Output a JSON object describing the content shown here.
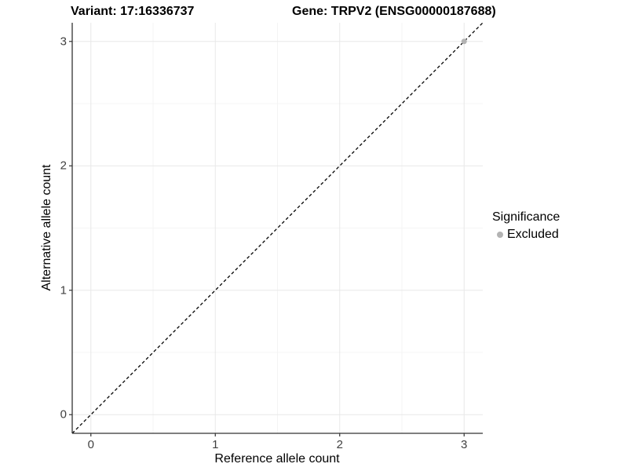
{
  "header": {
    "variant_title": "Variant: 17:16336737",
    "gene_title": "Gene: TRPV2 (ENSG00000187688)"
  },
  "chart_data": {
    "type": "scatter",
    "xlabel": "Reference allele count",
    "ylabel": "Alternative allele count",
    "xlim": [
      -0.15,
      3.15
    ],
    "ylim": [
      -0.15,
      3.15
    ],
    "x_ticks": [
      0,
      1,
      2,
      3
    ],
    "y_ticks": [
      0,
      1,
      2,
      3
    ],
    "x_minor_ticks": [
      0.5,
      1.5,
      2.5
    ],
    "y_minor_ticks": [
      0.5,
      1.5,
      2.5
    ],
    "grid": true,
    "identity_line": {
      "style": "dashed",
      "slope": 1,
      "intercept": 0,
      "color": "#000000"
    },
    "series": [
      {
        "name": "Excluded",
        "color": "#b3b3b3",
        "points": [
          {
            "x": 3,
            "y": 3
          }
        ]
      }
    ],
    "legend": {
      "title": "Significance",
      "position": "right",
      "items": [
        {
          "label": "Excluded",
          "color": "#b3b3b3"
        }
      ]
    }
  },
  "colors": {
    "background": "#ffffff",
    "grid_major": "#e8e8e8",
    "grid_minor": "#f4f4f4",
    "axis_line": "#333333",
    "tick_mark": "#333333",
    "tick_label": "#404040",
    "title_text": "#000000",
    "point": "#b3b3b3"
  }
}
